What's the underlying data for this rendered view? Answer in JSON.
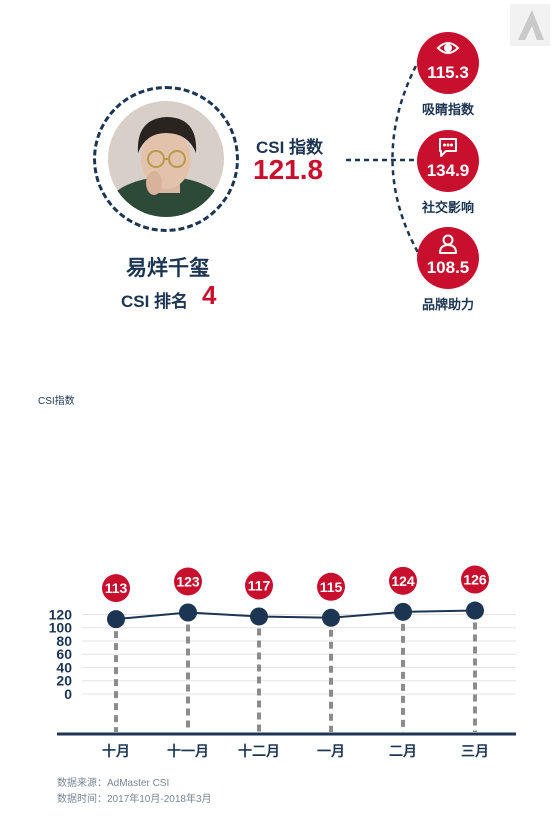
{
  "profile": {
    "name": "易烊千玺",
    "rank_label": "CSI 排名",
    "rank_value": "4",
    "csi_label": "CSI 指数",
    "csi_value": "121.8"
  },
  "metrics": [
    {
      "value": "115.3",
      "label": "吸睛指数",
      "icon": "eye-icon"
    },
    {
      "value": "134.9",
      "label": "社交影响",
      "icon": "chat-bubble-icon"
    },
    {
      "value": "108.5",
      "label": "品牌助力",
      "icon": "person-icon"
    }
  ],
  "colors": {
    "accent": "#c8102e",
    "navy": "#1c3553",
    "grid": "#e3e3e3",
    "dash": "#8c8c8c"
  },
  "chart_data": {
    "type": "line",
    "ylabel": "CSI指数",
    "categories": [
      "十月",
      "十一月",
      "十二月",
      "一月",
      "二月",
      "三月"
    ],
    "series": [
      {
        "values": [
          113,
          123,
          117,
          115,
          124,
          126
        ]
      }
    ],
    "data_labels": [
      "113",
      "123",
      "117",
      "115",
      "124",
      "126"
    ],
    "yticks": [
      "0",
      "20",
      "40",
      "60",
      "80",
      "100",
      "120"
    ],
    "ylim": [
      0,
      130
    ],
    "grid": true
  },
  "footer": {
    "source": "数据来源：AdMaster CSI",
    "period": "数据时间：2017年10月-2018年3月"
  }
}
